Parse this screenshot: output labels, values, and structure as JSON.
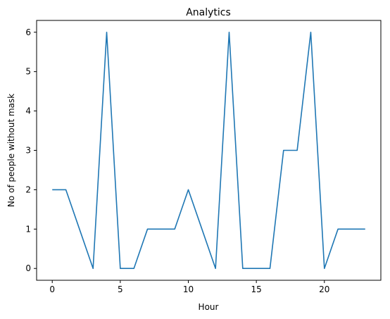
{
  "chart_data": {
    "type": "line",
    "title": "Analytics",
    "xlabel": "Hour",
    "ylabel": "No of people without mask",
    "xlim": [
      -1.15,
      24.15
    ],
    "ylim": [
      -0.3,
      6.3
    ],
    "xticks": [
      0,
      5,
      10,
      15,
      20
    ],
    "yticks": [
      0,
      1,
      2,
      3,
      4,
      5,
      6
    ],
    "grid": false,
    "color": "#1f77b4",
    "x": [
      0,
      1,
      2,
      3,
      4,
      5,
      6,
      7,
      8,
      9,
      10,
      11,
      12,
      13,
      14,
      15,
      16,
      17,
      18,
      19,
      20,
      21,
      22,
      23
    ],
    "y": [
      2,
      2,
      1,
      0,
      6,
      0,
      0,
      1,
      1,
      1,
      2,
      1,
      0,
      6,
      0,
      0,
      0,
      3,
      3,
      6,
      0,
      1,
      1,
      1
    ]
  }
}
